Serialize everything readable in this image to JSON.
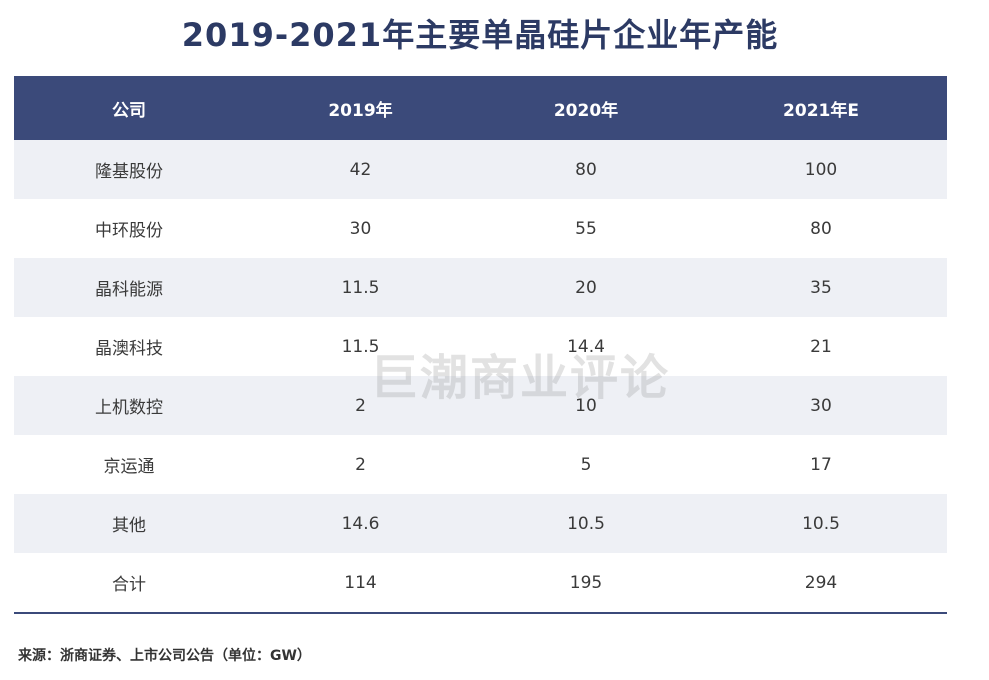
{
  "title": "2019-2021年主要单晶硅片企业年产能",
  "chart_data": {
    "type": "table",
    "columns": [
      "公司",
      "2019年",
      "2020年",
      "2021年E"
    ],
    "rows": [
      [
        "隆基股份",
        "42",
        "80",
        "100"
      ],
      [
        "中环股份",
        "30",
        "55",
        "80"
      ],
      [
        "晶科能源",
        "11.5",
        "20",
        "35"
      ],
      [
        "晶澳科技",
        "11.5",
        "14.4",
        "21"
      ],
      [
        "上机数控",
        "2",
        "10",
        "30"
      ],
      [
        "京运通",
        "2",
        "5",
        "17"
      ],
      [
        "其他",
        "14.6",
        "10.5",
        "10.5"
      ],
      [
        "合计",
        "114",
        "195",
        "294"
      ]
    ]
  },
  "watermark": "巨潮商业评论",
  "source": "来源：浙商证券、上市公司公告（单位：GW）",
  "colors": {
    "title": "#2c3a64",
    "header_bg": "#3b4a7a",
    "stripe": "#eef0f5"
  }
}
